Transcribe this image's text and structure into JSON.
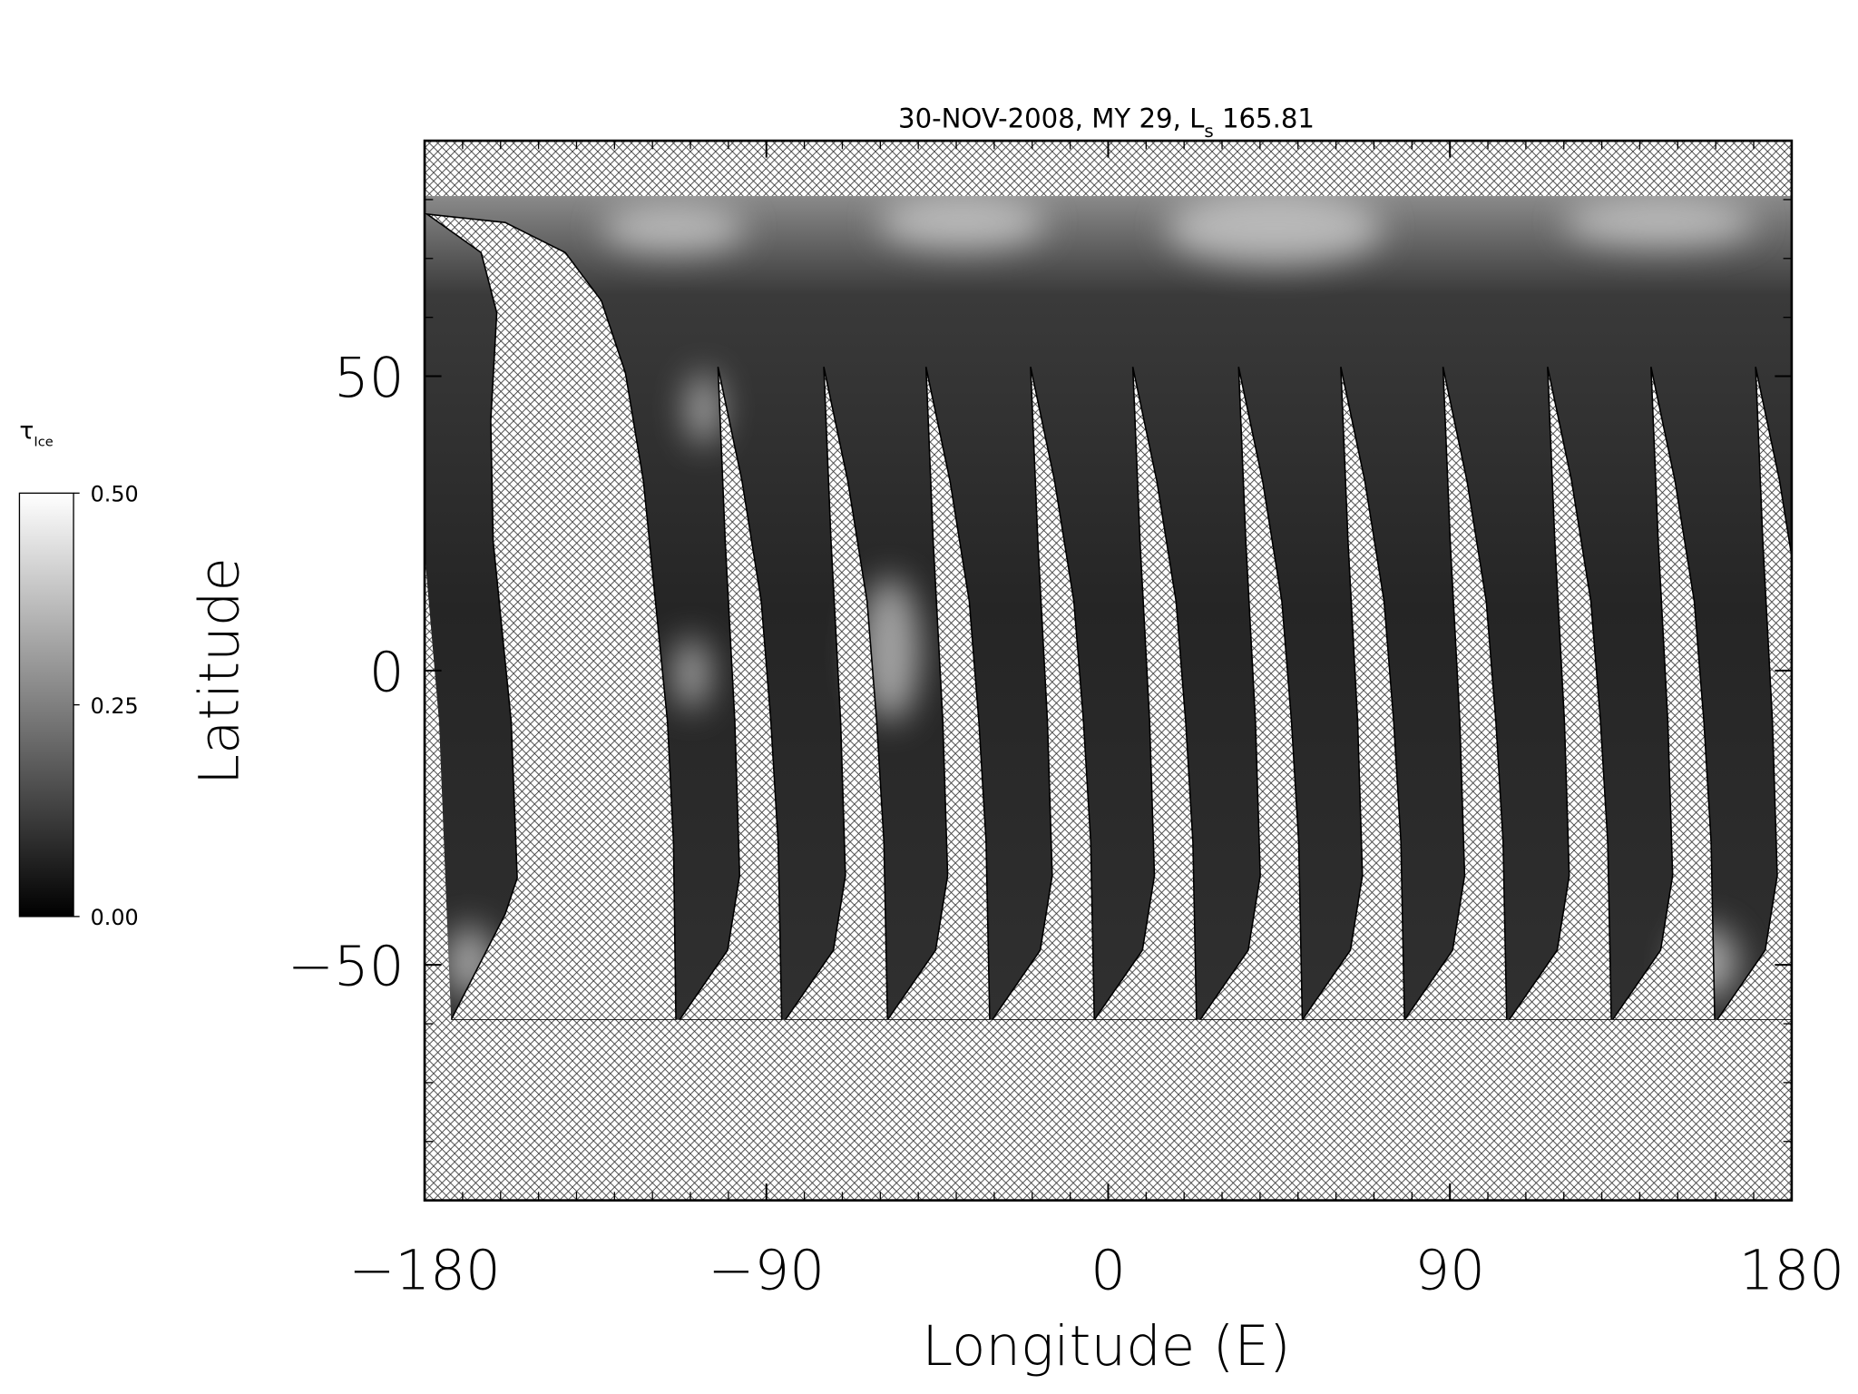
{
  "chart_data": {
    "type": "map",
    "title": {
      "text": "30-NOV-2008, MY 29,  L",
      "subscript": "s",
      "suffix": " 165.81"
    },
    "xlabel": "Longitude (E)",
    "ylabel": "Latitude",
    "xlim": [
      -180,
      180
    ],
    "ylim": [
      -90,
      90
    ],
    "xticks": [
      {
        "value": -180,
        "label": "−180"
      },
      {
        "value": -90,
        "label": "−90"
      },
      0,
      90,
      180
    ],
    "yticks": [
      {
        "value": -50,
        "label": "−50"
      },
      0,
      50
    ],
    "colorbar": {
      "label": "τ",
      "label_subscript": "Ice",
      "lim": [
        0,
        0.5
      ],
      "ticks": [
        {
          "value": 0,
          "label": "0.00"
        },
        {
          "value": 0.25,
          "label": "0.25"
        },
        {
          "value": 0.5,
          "label": "0.50"
        }
      ],
      "colors": [
        "#000000",
        "#ffffff"
      ]
    }
  }
}
